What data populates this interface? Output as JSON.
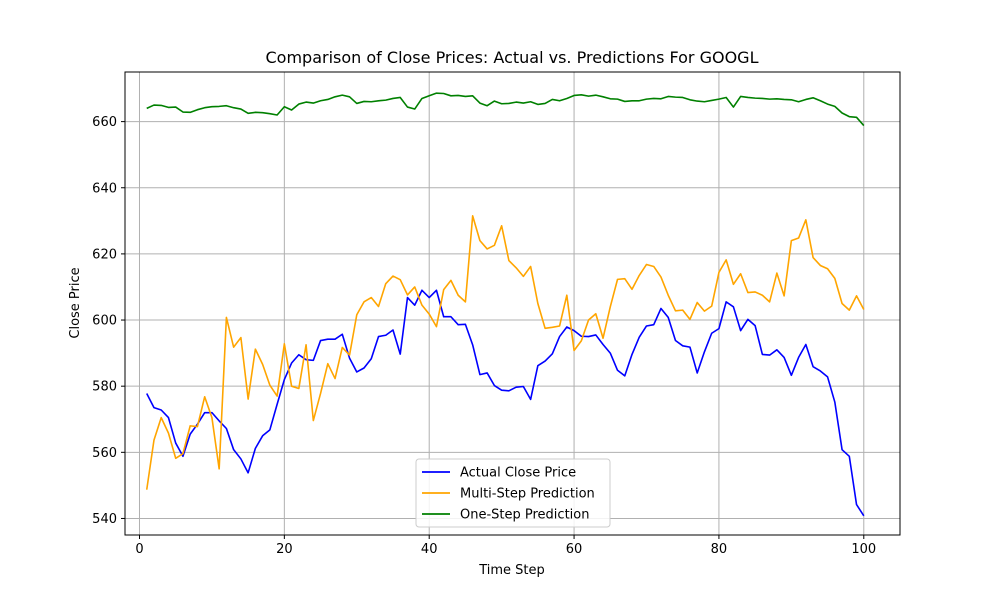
{
  "chart_data": {
    "type": "line",
    "title": "Comparison of Close Prices: Actual vs. Predictions For GOOGL",
    "xlabel": "Time Step",
    "ylabel": "Close Price",
    "xlim": [
      -2,
      105
    ],
    "ylim": [
      535,
      675
    ],
    "x_ticks": [
      0,
      20,
      40,
      60,
      80,
      100
    ],
    "y_ticks": [
      540,
      560,
      580,
      600,
      620,
      640,
      660
    ],
    "grid": true,
    "legend_position": "lower-center",
    "x": [
      1,
      2,
      3,
      4,
      5,
      6,
      7,
      8,
      9,
      10,
      11,
      12,
      13,
      14,
      15,
      16,
      17,
      18,
      19,
      20,
      21,
      22,
      23,
      24,
      25,
      26,
      27,
      28,
      29,
      30,
      31,
      32,
      33,
      34,
      35,
      36,
      37,
      38,
      39,
      40,
      41,
      42,
      43,
      44,
      45,
      46,
      47,
      48,
      49,
      50,
      51,
      52,
      53,
      54,
      55,
      56,
      57,
      58,
      59,
      60,
      61,
      62,
      63,
      64,
      65,
      66,
      67,
      68,
      69,
      70,
      71,
      72,
      73,
      74,
      75,
      76,
      77,
      78,
      79,
      80,
      81,
      82,
      83,
      84,
      85,
      86,
      87,
      88,
      89,
      90,
      91,
      92,
      93,
      94,
      95,
      96,
      97,
      98,
      99,
      100
    ],
    "series": [
      {
        "name": "Actual Close Price",
        "color": "#0000ff",
        "values": [
          577.8,
          573.5,
          572.8,
          570.5,
          562.8,
          558.8,
          565.5,
          568.5,
          572.0,
          572.0,
          569.5,
          567.2,
          560.8,
          558.0,
          553.8,
          561.2,
          565.0,
          566.8,
          574.5,
          582.0,
          587.0,
          589.5,
          588.0,
          587.8,
          593.8,
          594.2,
          594.2,
          595.7,
          588.5,
          584.3,
          585.5,
          588.3,
          595.0,
          595.4,
          597.0,
          589.7,
          606.8,
          604.5,
          609.0,
          606.8,
          609.0,
          601.0,
          601.0,
          598.6,
          598.7,
          592.5,
          583.5,
          584.0,
          580.2,
          578.8,
          578.6,
          579.7,
          579.9,
          576.0,
          586.2,
          587.6,
          589.8,
          595.0,
          597.9,
          596.8,
          595.1,
          595.0,
          595.5,
          592.6,
          590.0,
          584.8,
          583.1,
          589.6,
          594.8,
          598.2,
          598.6,
          603.5,
          600.8,
          593.8,
          592.2,
          591.8,
          584.0,
          590.4,
          596.0,
          597.4,
          605.5,
          604.0,
          596.8,
          600.2,
          598.3,
          589.6,
          589.4,
          591.0,
          588.7,
          583.3,
          588.7,
          592.6,
          585.9,
          584.6,
          582.8,
          575.2,
          560.8,
          558.8,
          544.2,
          540.8
        ]
      },
      {
        "name": "Multi-Step Prediction",
        "color": "#ffa500",
        "values": [
          548.7,
          563.7,
          570.5,
          565.8,
          558.2,
          559.6,
          568.0,
          567.8,
          576.8,
          570.5,
          555.0,
          600.8,
          591.8,
          594.7,
          576.1,
          591.2,
          586.6,
          580.3,
          577.0,
          592.8,
          580.0,
          579.3,
          592.5,
          569.6,
          577.8,
          586.8,
          582.3,
          591.7,
          589.4,
          601.6,
          605.5,
          606.8,
          604.1,
          611.0,
          613.3,
          612.2,
          607.6,
          610.0,
          604.5,
          601.8,
          598.0,
          609.2,
          612.0,
          607.5,
          605.5,
          631.5,
          624.0,
          621.5,
          622.6,
          628.5,
          618.0,
          615.8,
          613.2,
          616.2,
          605.0,
          597.5,
          597.8,
          598.2,
          607.5,
          590.8,
          593.7,
          600.0,
          601.9,
          594.5,
          604.0,
          612.3,
          612.5,
          609.3,
          613.5,
          616.8,
          616.2,
          613.0,
          607.5,
          602.8,
          603.0,
          600.2,
          605.3,
          602.7,
          604.2,
          614.4,
          618.2,
          610.8,
          614.0,
          608.3,
          608.5,
          607.5,
          605.5,
          614.2,
          607.3,
          624.0,
          624.8,
          630.3,
          618.9,
          616.5,
          615.5,
          612.6,
          605.0,
          603.0,
          607.3,
          603.2
        ]
      },
      {
        "name": "One-Step Prediction",
        "color": "#008000",
        "values": [
          664.0,
          665.0,
          664.9,
          664.3,
          664.4,
          662.9,
          662.8,
          663.6,
          664.2,
          664.5,
          664.6,
          664.8,
          664.2,
          663.8,
          662.5,
          662.8,
          662.7,
          662.4,
          662.0,
          664.5,
          663.5,
          665.3,
          665.9,
          665.6,
          666.3,
          666.7,
          667.5,
          668.0,
          667.5,
          665.5,
          666.1,
          666.0,
          666.3,
          666.5,
          667.0,
          667.3,
          664.4,
          663.8,
          667.0,
          667.8,
          668.6,
          668.5,
          667.8,
          667.9,
          667.6,
          667.8,
          665.6,
          664.8,
          666.2,
          665.4,
          665.5,
          665.9,
          665.6,
          666.0,
          665.2,
          665.5,
          666.7,
          666.3,
          667.0,
          667.9,
          668.1,
          667.7,
          668.0,
          667.5,
          666.9,
          666.8,
          666.1,
          666.3,
          666.3,
          666.8,
          667.0,
          666.9,
          667.6,
          667.4,
          667.3,
          666.6,
          666.2,
          666.0,
          666.4,
          666.8,
          667.3,
          664.4,
          667.6,
          667.3,
          667.1,
          667.0,
          666.8,
          666.9,
          666.7,
          666.6,
          666.0,
          666.7,
          667.2,
          666.3,
          665.3,
          664.6,
          662.6,
          661.5,
          661.3,
          658.8
        ]
      }
    ]
  }
}
